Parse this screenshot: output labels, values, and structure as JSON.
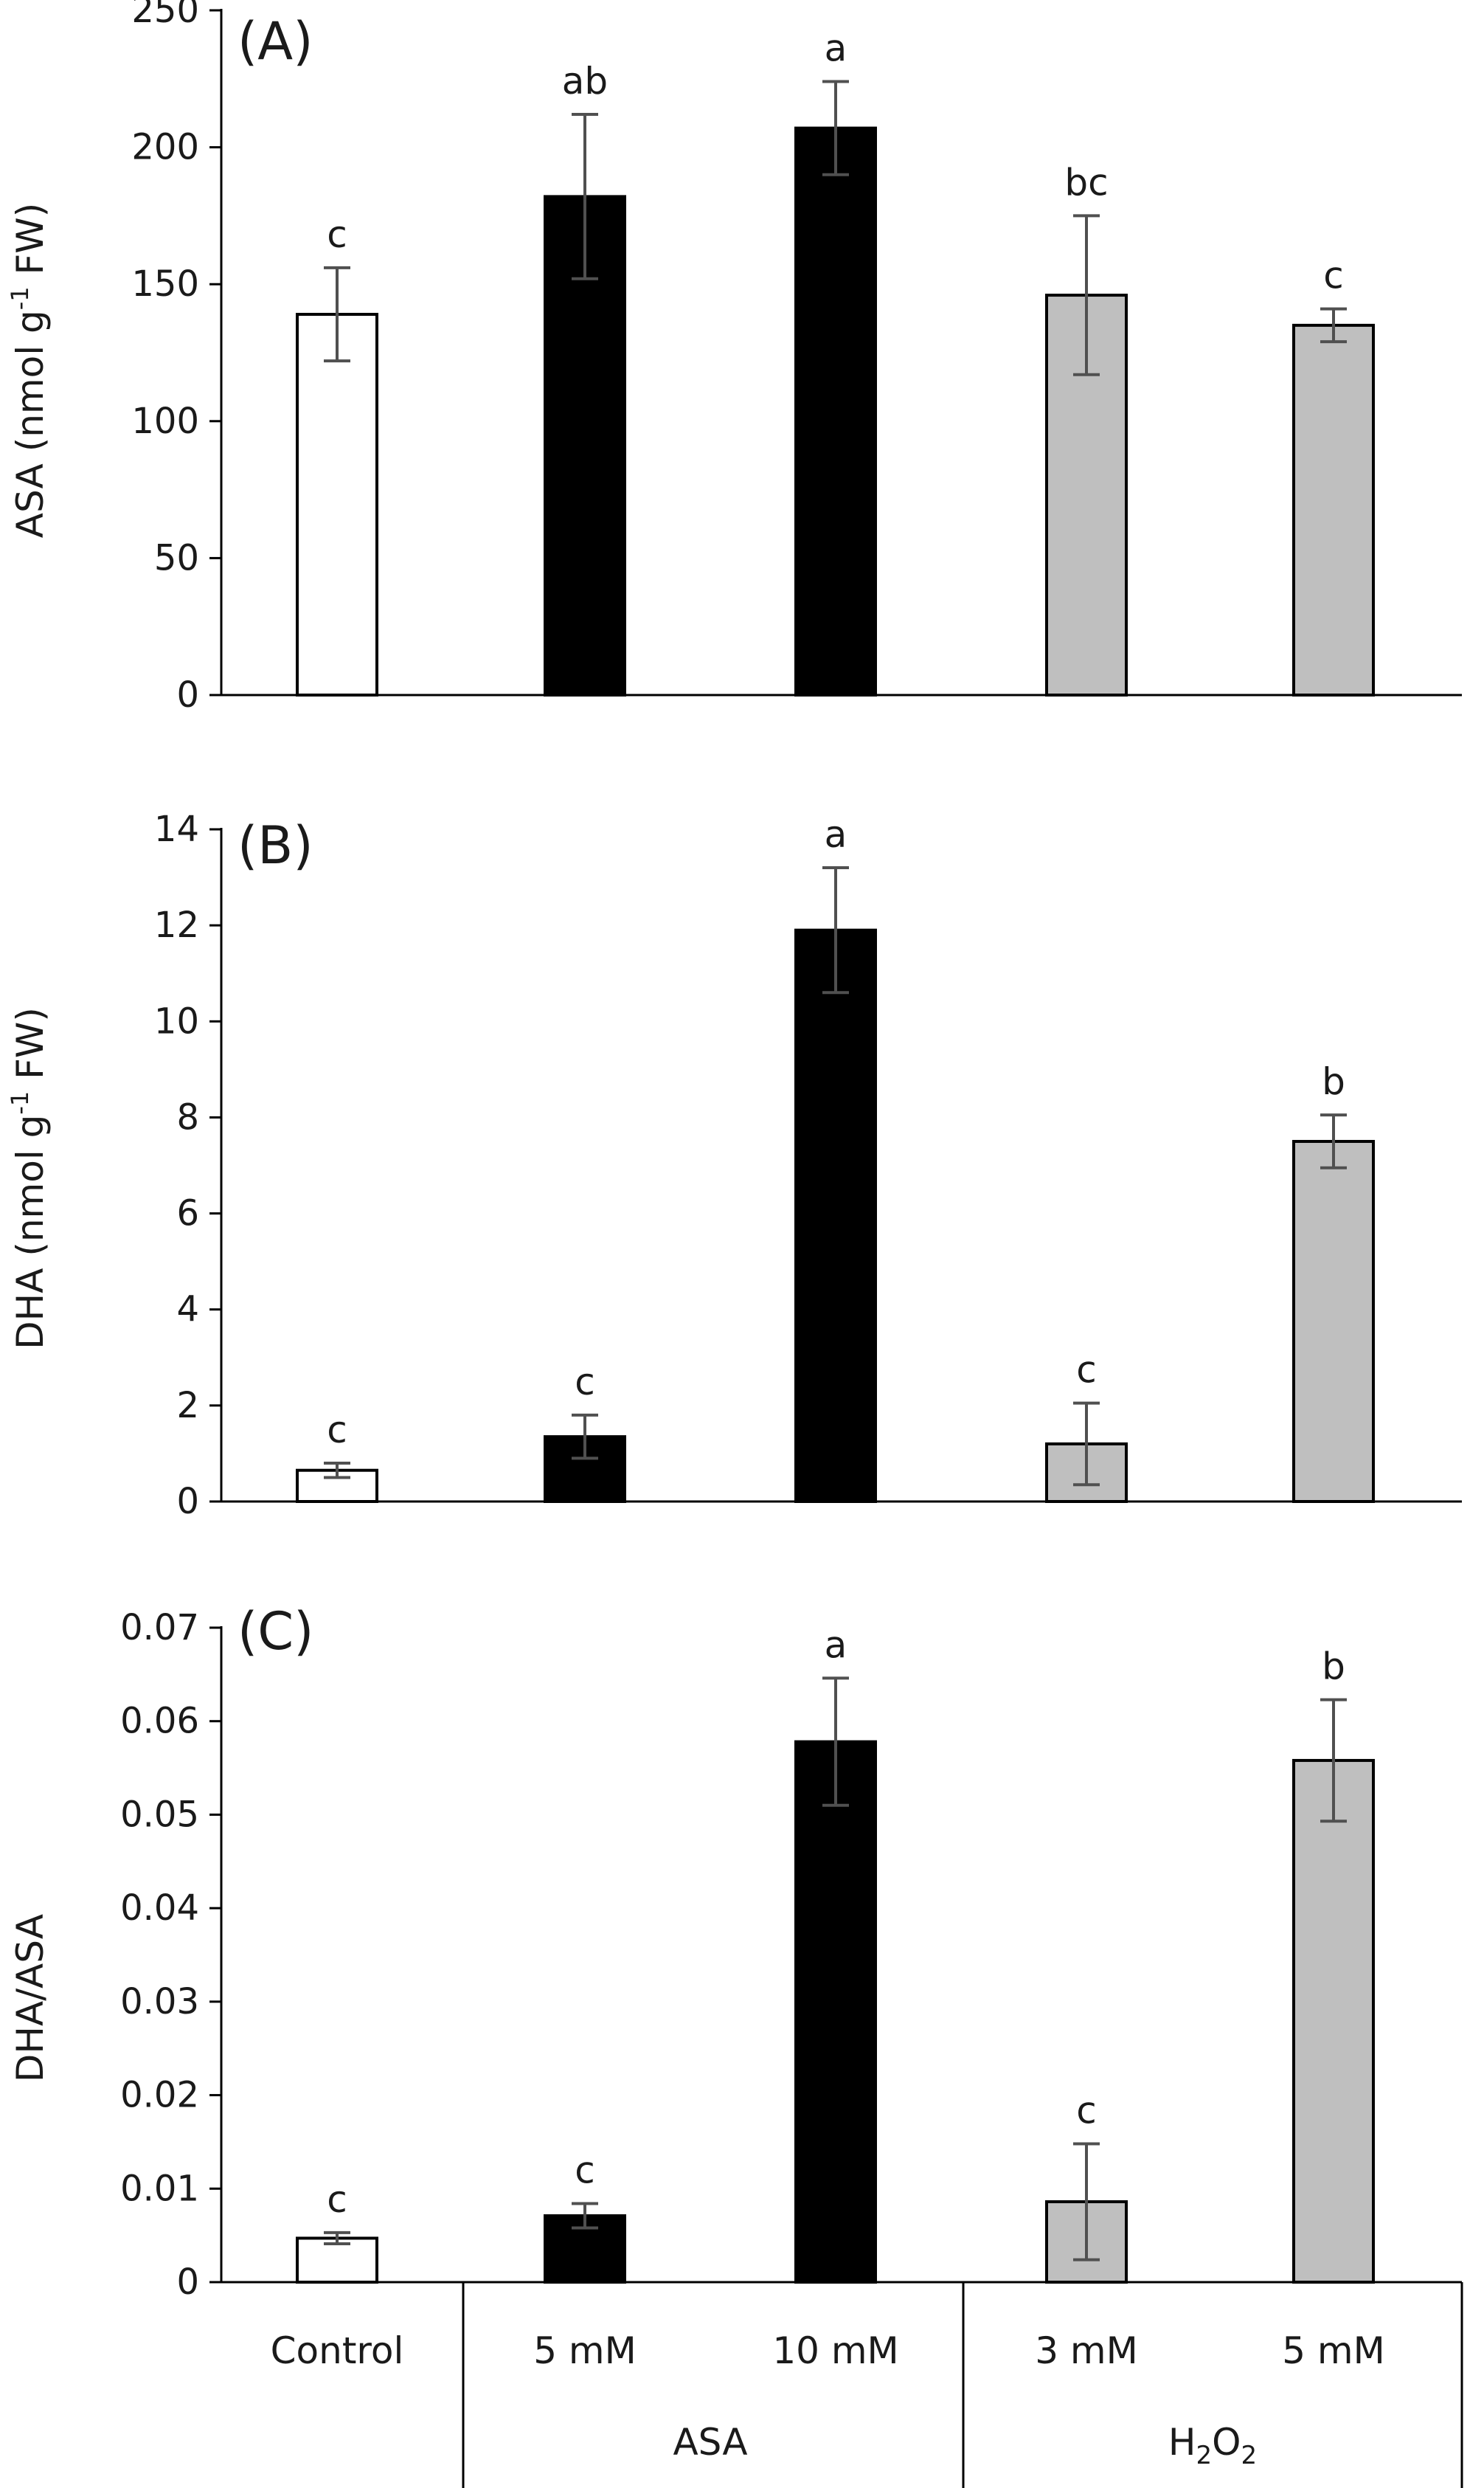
{
  "chart_data": [
    {
      "type": "bar",
      "panel_label": "(A)",
      "ylabel": "ASA (nmol g-1 FW)",
      "ylabel_parts": {
        "before": "ASA (nmol g",
        "sup": "-1",
        "after": " FW)"
      },
      "ylim": [
        0,
        250
      ],
      "yticks": [
        0,
        50,
        100,
        150,
        200,
        250
      ],
      "ytick_labels": [
        "0",
        "50",
        "100",
        "150",
        "200",
        "250"
      ],
      "categories": [
        "Control",
        "5 mM",
        "10 mM",
        "3 mM",
        "5 mM"
      ],
      "values": [
        139,
        182,
        207,
        146,
        135
      ],
      "errors": [
        17,
        30,
        17,
        29,
        6
      ],
      "significance": [
        "c",
        "ab",
        "a",
        "bc",
        "c"
      ],
      "bar_colors": [
        "#ffffff",
        "#000000",
        "#000000",
        "#bfbfbf",
        "#bfbfbf"
      ]
    },
    {
      "type": "bar",
      "panel_label": "(B)",
      "ylabel": "DHA (nmol g-1 FW)",
      "ylabel_parts": {
        "before": "DHA (nmol g",
        "sup": "-1",
        "after": " FW)"
      },
      "ylim": [
        0,
        14
      ],
      "yticks": [
        0,
        2,
        4,
        6,
        8,
        10,
        12,
        14
      ],
      "ytick_labels": [
        "0",
        "2",
        "4",
        "6",
        "8",
        "10",
        "12",
        "14"
      ],
      "categories": [
        "Control",
        "5 mM",
        "10 mM",
        "3 mM",
        "5 mM"
      ],
      "values": [
        0.65,
        1.35,
        11.9,
        1.2,
        7.5
      ],
      "errors": [
        0.15,
        0.45,
        1.3,
        0.85,
        0.55
      ],
      "significance": [
        "c",
        "c",
        "a",
        "c",
        "b"
      ],
      "bar_colors": [
        "#ffffff",
        "#000000",
        "#000000",
        "#bfbfbf",
        "#bfbfbf"
      ]
    },
    {
      "type": "bar",
      "panel_label": "(C)",
      "ylabel": "DHA/ASA",
      "ylim": [
        0,
        0.07
      ],
      "yticks": [
        0,
        0.01,
        0.02,
        0.03,
        0.04,
        0.05,
        0.06,
        0.07
      ],
      "ytick_labels": [
        "0",
        "0.01",
        "0.02",
        "0.03",
        "0.04",
        "0.05",
        "0.06",
        "0.07"
      ],
      "categories": [
        "Control",
        "5 mM",
        "10 mM",
        "3 mM",
        "5 mM"
      ],
      "values": [
        0.0047,
        0.0071,
        0.0578,
        0.0086,
        0.0558
      ],
      "errors": [
        0.0006,
        0.0013,
        0.0068,
        0.0062,
        0.0065
      ],
      "significance": [
        "c",
        "c",
        "a",
        "c",
        "b"
      ],
      "bar_colors": [
        "#ffffff",
        "#000000",
        "#000000",
        "#bfbfbf",
        "#bfbfbf"
      ]
    }
  ],
  "x_axis": {
    "categories": [
      "Control",
      "5 mM",
      "10 mM",
      "3 mM",
      "5 mM"
    ],
    "groups": [
      {
        "label": "ASA",
        "members": [
          1,
          2
        ]
      },
      {
        "label": "H2O2",
        "parts": {
          "base": "H",
          "sub1": "2",
          "mid": "O",
          "sub2": "2"
        },
        "members": [
          3,
          4
        ]
      }
    ]
  },
  "colors": {
    "control": "#ffffff",
    "asa": "#000000",
    "h2o2": "#bfbfbf",
    "axis": "#000000",
    "error_bar": "#505050"
  }
}
